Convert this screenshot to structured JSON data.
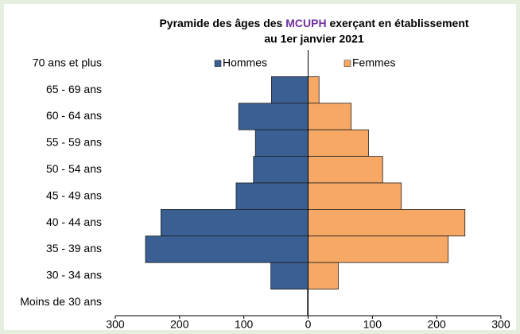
{
  "chart_data": {
    "type": "pyramid",
    "title": {
      "before": "Pyramide  des âges des",
      "highlight": "MCUPH",
      "after": "exerçant en établissement"
    },
    "highlight_color": "#7030a0",
    "subtitle": "au 1er janvier 2021",
    "categories": [
      "70 ans et plus",
      "65 - 69 ans",
      "60 - 64 ans",
      "55 - 59 ans",
      "50 - 54 ans",
      "45 - 49 ans",
      "40 - 44 ans",
      "35 - 39 ans",
      "30 - 34 ans",
      "Moins de 30 ans"
    ],
    "series": [
      {
        "name": "Hommes",
        "color": "#3a5f93",
        "values": [
          0,
          -57,
          -108,
          -82,
          -85,
          -112,
          -229,
          -253,
          -58,
          -1
        ]
      },
      {
        "name": "Femmes",
        "color": "#f7a865",
        "values": [
          0,
          17,
          67,
          94,
          116,
          145,
          244,
          218,
          47,
          0
        ]
      }
    ],
    "xlim": [
      -300,
      300
    ],
    "xticks": [
      {
        "value": -300,
        "label": "300"
      },
      {
        "value": -200,
        "label": "200"
      },
      {
        "value": -100,
        "label": "100"
      },
      0,
      100,
      200,
      300
    ],
    "legend": "top"
  }
}
